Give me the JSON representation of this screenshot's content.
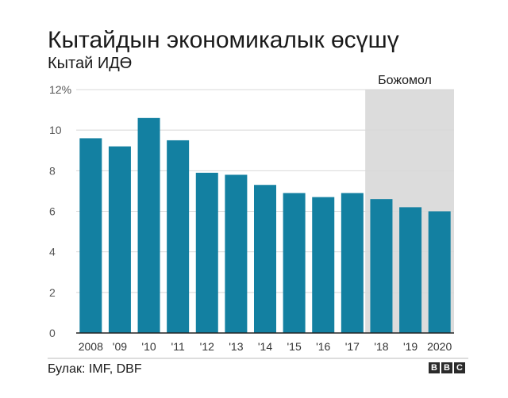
{
  "header": {
    "title": "Кытайдын экономикалык өсүшү",
    "subtitle": "Кытай ИДӨ"
  },
  "footer": {
    "source": "Булак: IMF, DBF",
    "logo": [
      "B",
      "B",
      "C"
    ]
  },
  "colors": {
    "bar": "#1380a1",
    "forecast_band": "#dcdcdc",
    "grid": "#d8d8d8",
    "axis": "#222222",
    "text": "#1a1a1a"
  },
  "chart_data": {
    "type": "bar",
    "title": "Кытайдын экономикалык өсүшү",
    "subtitle": "Кытай ИДӨ",
    "categories": [
      "2008",
      "'09",
      "'10",
      "'11",
      "'12",
      "'13",
      "'14",
      "'15",
      "'16",
      "'17",
      "'18",
      "'19",
      "2020"
    ],
    "values": [
      9.6,
      9.2,
      10.6,
      9.5,
      7.9,
      7.8,
      7.3,
      6.9,
      6.7,
      6.9,
      6.6,
      6.2,
      6.0
    ],
    "yticks": [
      0,
      2,
      4,
      6,
      8,
      10,
      12
    ],
    "ytick_labels": [
      "0",
      "2",
      "4",
      "6",
      "8",
      "10",
      "12%"
    ],
    "ylim": [
      0,
      12
    ],
    "xlabel": "",
    "ylabel": "",
    "grid": true,
    "forecast": {
      "label": "Божомол",
      "start_category": "'18",
      "end_category": "2020"
    }
  }
}
